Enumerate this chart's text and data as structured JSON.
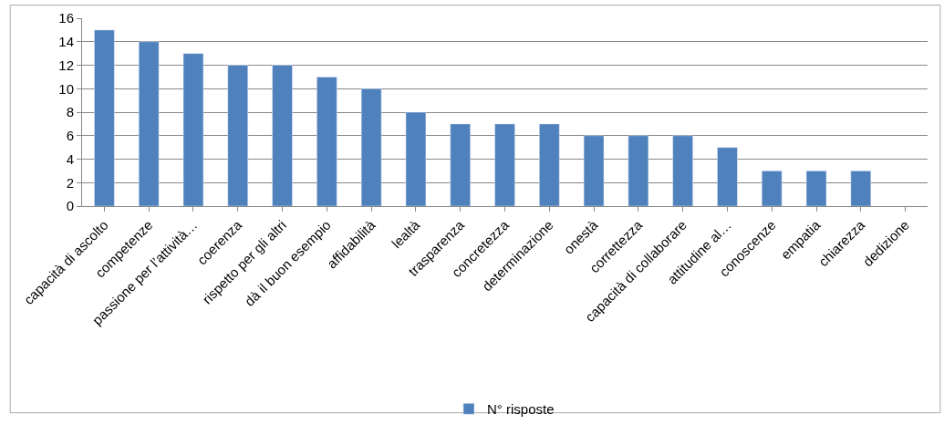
{
  "chart_data": {
    "type": "bar",
    "categories": [
      "capacità di ascolto",
      "competenze",
      "passione per l’attività…",
      "coerenza",
      "rispetto per gli altri",
      "dà il buon esempio",
      "affidabilità",
      "lealtà",
      "trasparenza",
      "concretezza",
      "determinazione",
      "onestà",
      "correttezza",
      "capacità di collaborare",
      "attitudine al…",
      "conoscenze",
      "empatia",
      "chiarezza",
      "dedizione"
    ],
    "series": [
      {
        "name": "N° risposte",
        "color": "#4f81bd",
        "values": [
          15,
          14,
          13,
          12,
          12,
          11,
          10,
          8,
          7,
          7,
          7,
          6,
          6,
          6,
          5,
          3,
          3,
          3,
          null
        ]
      }
    ],
    "ylim": [
      0,
      16
    ],
    "yticks": [
      0,
      2,
      4,
      6,
      8,
      10,
      12,
      14,
      16
    ],
    "grid": "y",
    "legend": "bottom"
  }
}
